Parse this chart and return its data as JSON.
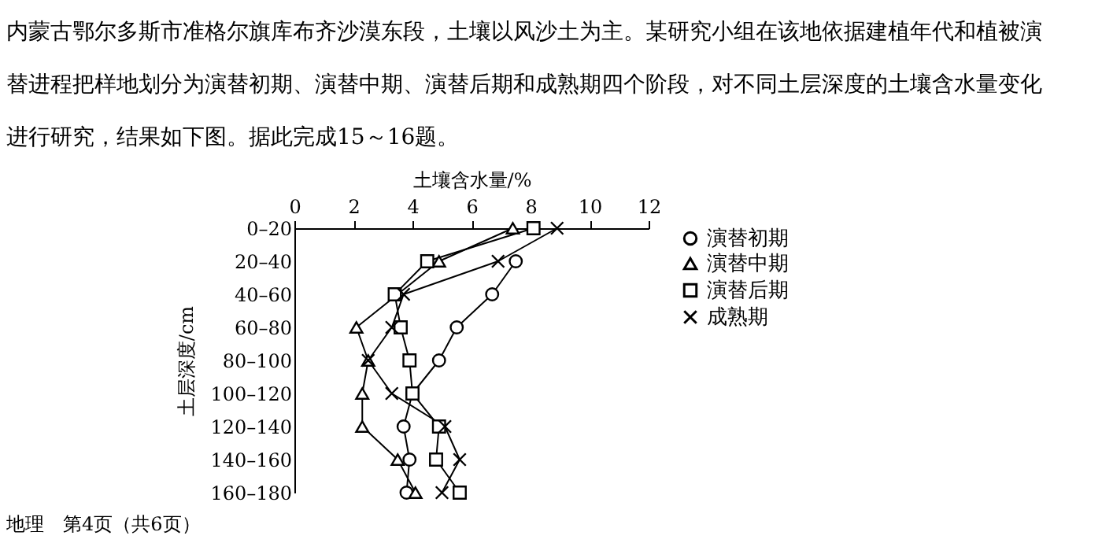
{
  "chart_data": {
    "type": "line",
    "orientation": "horizontal",
    "xlabel": "土壤含水量/%",
    "ylabel": "土层深度/cm",
    "categories": [
      "0–20",
      "20–40",
      "40–60",
      "60–80",
      "80–100",
      "100–120",
      "120–140",
      "140–160",
      "160–180"
    ],
    "xlim": [
      0,
      12
    ],
    "xticks": [
      0,
      2,
      4,
      6,
      8,
      10,
      12
    ],
    "series": [
      {
        "name": "演替初期",
        "color": "#000000",
        "marker": "circle",
        "values": [
          null,
          7.5,
          6.7,
          5.5,
          4.9,
          4.0,
          3.7,
          3.9,
          3.8
        ]
      },
      {
        "name": "演替中期",
        "color": "#000000",
        "marker": "triangle",
        "values": [
          7.4,
          4.9,
          null,
          2.1,
          2.5,
          2.3,
          2.3,
          3.5,
          4.1
        ]
      },
      {
        "name": "演替后期",
        "color": "#000000",
        "marker": "square",
        "values": [
          8.1,
          4.5,
          3.4,
          3.6,
          3.9,
          4.0,
          4.9,
          4.8,
          5.6
        ]
      },
      {
        "name": "成熟期",
        "color": "#000000",
        "marker": "cross",
        "values": [
          8.9,
          6.9,
          3.7,
          3.3,
          2.5,
          3.3,
          5.1,
          5.6,
          5.0
        ]
      }
    ],
    "legend": "right",
    "grid": false,
    "annotations": [
      "内蒙古鄂尔多斯市准格尔旗库布齐沙漠东段，土壤以风沙土为主。某研究小组在该地依据建植年代和植被演替进程把样地划分为演替初期、演替中期、演替后期和成熟期四个阶段，对不同土层深度的土壤含水量变化进行研究，结果如下图。据此完成15～16题。",
      "地理　第4页（共6页）"
    ]
  }
}
